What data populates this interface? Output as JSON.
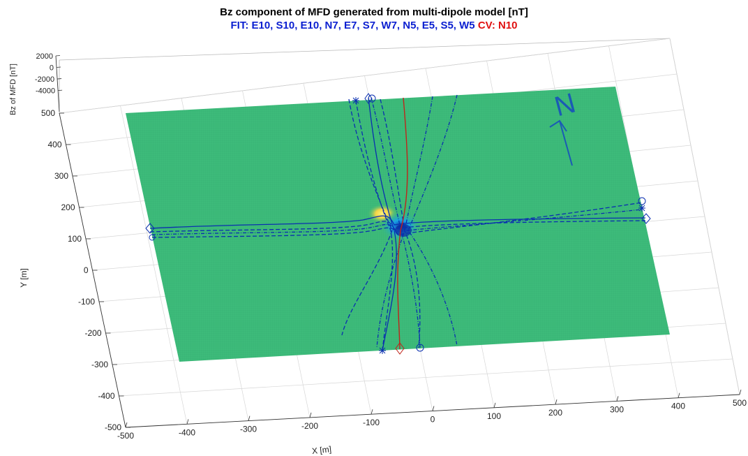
{
  "chart_data": {
    "type": "surface",
    "title": "Bz component of MFD generated from multi-dipole model [nT]",
    "subtitle": {
      "fit_label": "FIT: E10, S10, E10, N7, E7, S7, W7, N5, E5, S5, W5",
      "cv_label": "CV: N10"
    },
    "xlabel": "X [m]",
    "ylabel": "Y [m]",
    "zlabel": "Bz of MFD [nT]",
    "x_ticks": [
      "-500",
      "-400",
      "-300",
      "-200",
      "-100",
      "0",
      "100",
      "200",
      "300",
      "400",
      "500"
    ],
    "y_ticks": [
      "-500",
      "-400",
      "-300",
      "-200",
      "-100",
      "0",
      "100",
      "200",
      "300",
      "400",
      "500"
    ],
    "z_ticks": [
      "2000",
      "0",
      "-2000",
      "-4000"
    ],
    "xlim": [
      -500,
      500
    ],
    "ylim": [
      -500,
      500
    ],
    "zlim": [
      -4000,
      2000
    ],
    "grid": true,
    "north_label": "N",
    "colors": {
      "surface": "#3dbb7a",
      "fit_lines": "#0a2fb0",
      "cv_line": "#c0241b",
      "anomaly_high": "#f5e65a",
      "anomaly_low": "#1aa0e0"
    }
  }
}
